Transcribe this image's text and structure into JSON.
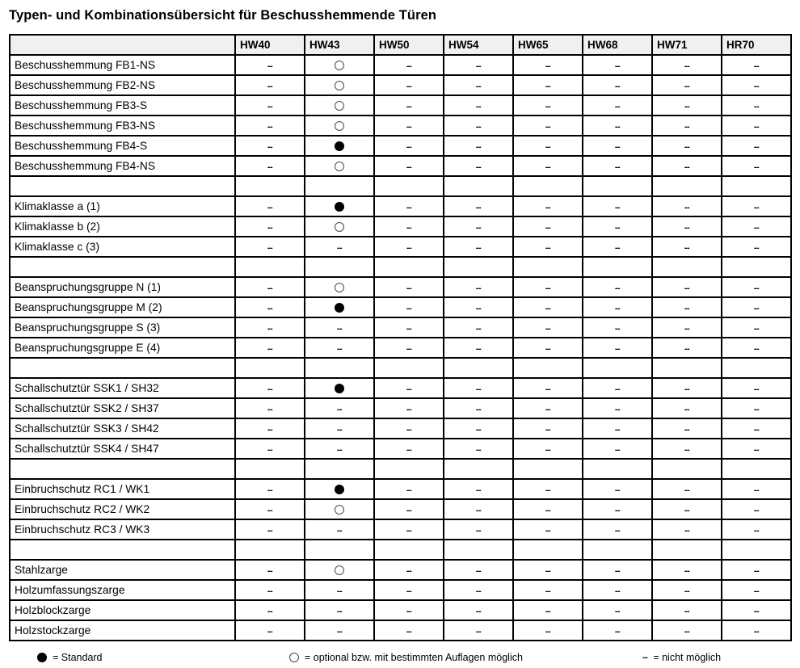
{
  "title": "Typen- und Kombinationsübersicht für Beschusshemmende Türen",
  "symbols": {
    "none_text": "--",
    "standard": "filled-circle",
    "optional": "open-circle"
  },
  "table": {
    "columns": [
      "HW40",
      "HW43",
      "HW50",
      "HW54",
      "HW65",
      "HW68",
      "HW71",
      "HR70"
    ],
    "rows": [
      {
        "label": "Beschusshemmung FB1-NS",
        "values": [
          "n",
          "o",
          "n",
          "n",
          "n",
          "n",
          "n",
          "n"
        ]
      },
      {
        "label": "Beschusshemmung FB2-NS",
        "values": [
          "n",
          "o",
          "n",
          "n",
          "n",
          "n",
          "n",
          "n"
        ]
      },
      {
        "label": "Beschusshemmung FB3-S",
        "values": [
          "n",
          "o",
          "n",
          "n",
          "n",
          "n",
          "n",
          "n"
        ]
      },
      {
        "label": "Beschusshemmung FB3-NS",
        "values": [
          "n",
          "o",
          "n",
          "n",
          "n",
          "n",
          "n",
          "n"
        ]
      },
      {
        "label": "Beschusshemmung FB4-S",
        "values": [
          "n",
          "s",
          "n",
          "n",
          "n",
          "n",
          "n",
          "n"
        ]
      },
      {
        "label": "Beschusshemmung FB4-NS",
        "values": [
          "n",
          "o",
          "n",
          "n",
          "n",
          "n",
          "n",
          "n"
        ]
      },
      {
        "label": "",
        "values": [
          "",
          "",
          "",
          "",
          "",
          "",
          "",
          ""
        ]
      },
      {
        "label": "Klimaklasse a (1)",
        "values": [
          "n",
          "s",
          "n",
          "n",
          "n",
          "n",
          "n",
          "n"
        ]
      },
      {
        "label": "Klimaklasse b (2)",
        "values": [
          "n",
          "o",
          "n",
          "n",
          "n",
          "n",
          "n",
          "n"
        ]
      },
      {
        "label": "Klimaklasse c (3)",
        "values": [
          "n",
          "n",
          "n",
          "n",
          "n",
          "n",
          "n",
          "n"
        ]
      },
      {
        "label": "",
        "values": [
          "",
          "",
          "",
          "",
          "",
          "",
          "",
          ""
        ]
      },
      {
        "label": "Beanspruchungsgruppe N (1)",
        "values": [
          "n",
          "o",
          "n",
          "n",
          "n",
          "n",
          "n",
          "n"
        ]
      },
      {
        "label": "Beanspruchungsgruppe M (2)",
        "values": [
          "n",
          "s",
          "n",
          "n",
          "n",
          "n",
          "n",
          "n"
        ]
      },
      {
        "label": "Beanspruchungsgruppe S (3)",
        "values": [
          "n",
          "n",
          "n",
          "n",
          "n",
          "n",
          "n",
          "n"
        ]
      },
      {
        "label": "Beanspruchungsgruppe E (4)",
        "values": [
          "n",
          "n",
          "n",
          "n",
          "n",
          "n",
          "n",
          "n"
        ]
      },
      {
        "label": "",
        "values": [
          "",
          "",
          "",
          "",
          "",
          "",
          "",
          ""
        ]
      },
      {
        "label": "Schallschutztür SSK1 / SH32",
        "values": [
          "n",
          "s",
          "n",
          "n",
          "n",
          "n",
          "n",
          "n"
        ]
      },
      {
        "label": "Schallschutztür SSK2 / SH37",
        "values": [
          "n",
          "n",
          "n",
          "n",
          "n",
          "n",
          "n",
          "n"
        ]
      },
      {
        "label": "Schallschutztür SSK3 / SH42",
        "values": [
          "n",
          "n",
          "n",
          "n",
          "n",
          "n",
          "n",
          "n"
        ]
      },
      {
        "label": "Schallschutztür SSK4 / SH47",
        "values": [
          "n",
          "n",
          "n",
          "n",
          "n",
          "n",
          "n",
          "n"
        ]
      },
      {
        "label": "",
        "values": [
          "",
          "",
          "",
          "",
          "",
          "",
          "",
          ""
        ]
      },
      {
        "label": "Einbruchschutz RC1 / WK1",
        "values": [
          "n",
          "s",
          "n",
          "n",
          "n",
          "n",
          "n",
          "n"
        ]
      },
      {
        "label": "Einbruchschutz RC2 / WK2",
        "values": [
          "n",
          "o",
          "n",
          "n",
          "n",
          "n",
          "n",
          "n"
        ]
      },
      {
        "label": "Einbruchschutz RC3 / WK3",
        "values": [
          "n",
          "n",
          "n",
          "n",
          "n",
          "n",
          "n",
          "n"
        ]
      },
      {
        "label": "",
        "values": [
          "",
          "",
          "",
          "",
          "",
          "",
          "",
          ""
        ]
      },
      {
        "label": "Stahlzarge",
        "values": [
          "n",
          "o",
          "n",
          "n",
          "n",
          "n",
          "n",
          "n"
        ]
      },
      {
        "label": "Holzumfassungszarge",
        "values": [
          "n",
          "n",
          "n",
          "n",
          "n",
          "n",
          "n",
          "n"
        ]
      },
      {
        "label": "Holzblockzarge",
        "values": [
          "n",
          "n",
          "n",
          "n",
          "n",
          "n",
          "n",
          "n"
        ]
      },
      {
        "label": "Holzstockzarge",
        "values": [
          "n",
          "n",
          "n",
          "n",
          "n",
          "n",
          "n",
          "n"
        ]
      }
    ]
  },
  "legend": [
    {
      "symbol": "standard",
      "label": "= Standard"
    },
    {
      "symbol": "optional",
      "label": "= optional bzw. mit bestimmten Auflagen möglich"
    },
    {
      "symbol": "none",
      "label": "= nicht möglich"
    }
  ]
}
